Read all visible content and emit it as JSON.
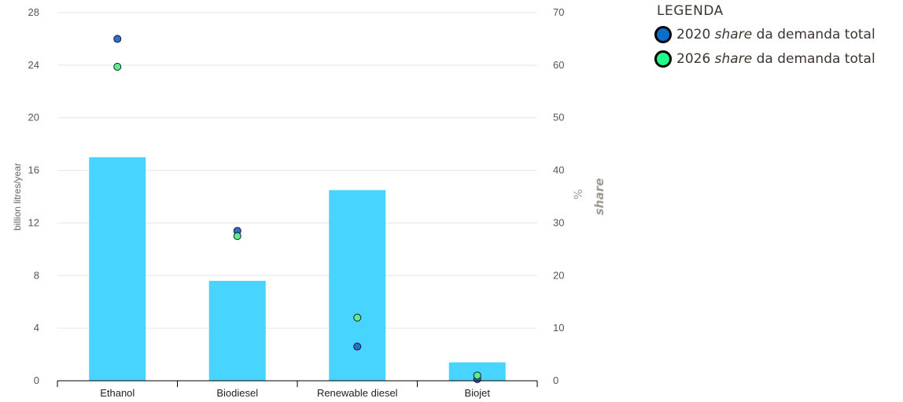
{
  "chart_data": {
    "type": "bar",
    "categories": [
      "Ethanol",
      "Biodiesel",
      "Renewable diesel",
      "Biojet"
    ],
    "series": [
      {
        "name": "",
        "type": "bar",
        "axis": "left",
        "color": "#47d4ff",
        "values": [
          17.0,
          7.6,
          14.5,
          1.4
        ]
      },
      {
        "name": "2020 share da demanda total",
        "type": "scatter",
        "axis": "right",
        "color": "#2f6fcc",
        "values": [
          65,
          28.5,
          6.5,
          0.3
        ]
      },
      {
        "name": "2026 share da demanda total",
        "type": "scatter",
        "axis": "right",
        "color": "#5cf08c",
        "values": [
          59.7,
          27.5,
          12,
          1
        ]
      }
    ],
    "ylabel": "billion litres/year",
    "ylim": [
      0,
      28
    ],
    "yticks": [
      0,
      4,
      8,
      12,
      16,
      20,
      24,
      28
    ],
    "y2label_unit": "%",
    "y2label": "share",
    "y2lim": [
      0,
      70
    ],
    "y2ticks": [
      0,
      10,
      20,
      30,
      40,
      50,
      60,
      70
    ],
    "grid": true,
    "legend_position": "top-right"
  },
  "legend": {
    "title": "LEGENDA",
    "items": [
      {
        "year": "2020",
        "italic": "share",
        "rest": "da demanda total",
        "color": "#0a6fcc"
      },
      {
        "year": "2026",
        "italic": "share",
        "rest": "da demanda total",
        "color": "#1ffa8a"
      }
    ]
  }
}
